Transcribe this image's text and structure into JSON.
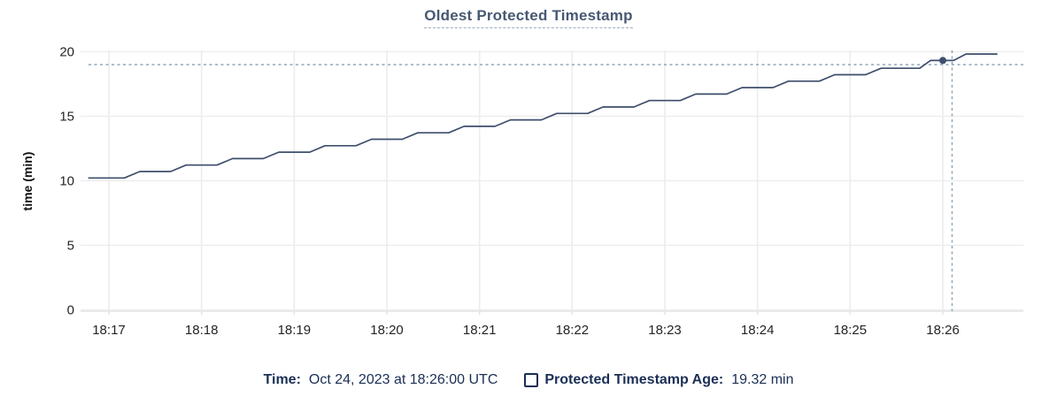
{
  "chart": {
    "title": "Oldest Protected Timestamp",
    "y_axis_label": "time (min)",
    "legend": {
      "time_label": "Time:",
      "time_value": "Oct 24, 2023 at 18:26:00 UTC",
      "series_label": "Protected Timestamp Age:",
      "series_value": "19.32 min"
    }
  },
  "chart_data": {
    "type": "line",
    "title": "Oldest Protected Timestamp",
    "xlabel": "",
    "ylabel": "time (min)",
    "x_ticks": [
      "18:17",
      "18:18",
      "18:19",
      "18:20",
      "18:21",
      "18:22",
      "18:23",
      "18:24",
      "18:25",
      "18:26"
    ],
    "y_ticks": [
      0,
      5,
      10,
      15,
      20
    ],
    "ylim": [
      0,
      20
    ],
    "xlim": [
      "18:16:42",
      "18:26:52"
    ],
    "grid": true,
    "legend_position": "bottom",
    "series": [
      {
        "name": "Protected Timestamp Age",
        "unit": "min",
        "points": [
          [
            "18:16:47",
            10.22
          ],
          [
            "18:17:10",
            10.22
          ],
          [
            "18:17:20",
            10.72
          ],
          [
            "18:17:40",
            10.72
          ],
          [
            "18:17:50",
            11.22
          ],
          [
            "18:18:10",
            11.22
          ],
          [
            "18:18:20",
            11.72
          ],
          [
            "18:18:40",
            11.72
          ],
          [
            "18:18:50",
            12.22
          ],
          [
            "18:19:10",
            12.22
          ],
          [
            "18:19:20",
            12.72
          ],
          [
            "18:19:40",
            12.72
          ],
          [
            "18:19:50",
            13.22
          ],
          [
            "18:20:10",
            13.22
          ],
          [
            "18:20:20",
            13.72
          ],
          [
            "18:20:40",
            13.72
          ],
          [
            "18:20:50",
            14.22
          ],
          [
            "18:21:10",
            14.22
          ],
          [
            "18:21:20",
            14.72
          ],
          [
            "18:21:40",
            14.72
          ],
          [
            "18:21:50",
            15.22
          ],
          [
            "18:22:10",
            15.22
          ],
          [
            "18:22:20",
            15.72
          ],
          [
            "18:22:40",
            15.72
          ],
          [
            "18:22:50",
            16.22
          ],
          [
            "18:23:10",
            16.22
          ],
          [
            "18:23:20",
            16.72
          ],
          [
            "18:23:40",
            16.72
          ],
          [
            "18:23:50",
            17.22
          ],
          [
            "18:24:10",
            17.22
          ],
          [
            "18:24:20",
            17.72
          ],
          [
            "18:24:40",
            17.72
          ],
          [
            "18:24:50",
            18.22
          ],
          [
            "18:25:10",
            18.22
          ],
          [
            "18:25:20",
            18.72
          ],
          [
            "18:25:45",
            18.72
          ],
          [
            "18:25:52",
            19.32
          ],
          [
            "18:26:07",
            19.32
          ],
          [
            "18:26:15",
            19.82
          ],
          [
            "18:26:35",
            19.82
          ]
        ]
      }
    ],
    "hover": {
      "snap_time": "18:26:00",
      "snap_value": 19.32,
      "cursor_time": "18:26:06",
      "cursor_value": 19.0
    },
    "colors": {
      "line": "#3e4e6c",
      "grid": "#ececec",
      "axis": "#e4e4e4",
      "crosshair": "#8fa6b7",
      "title": "#475872",
      "legend_text": "#1a2f55",
      "tick_text": "#242424"
    }
  }
}
